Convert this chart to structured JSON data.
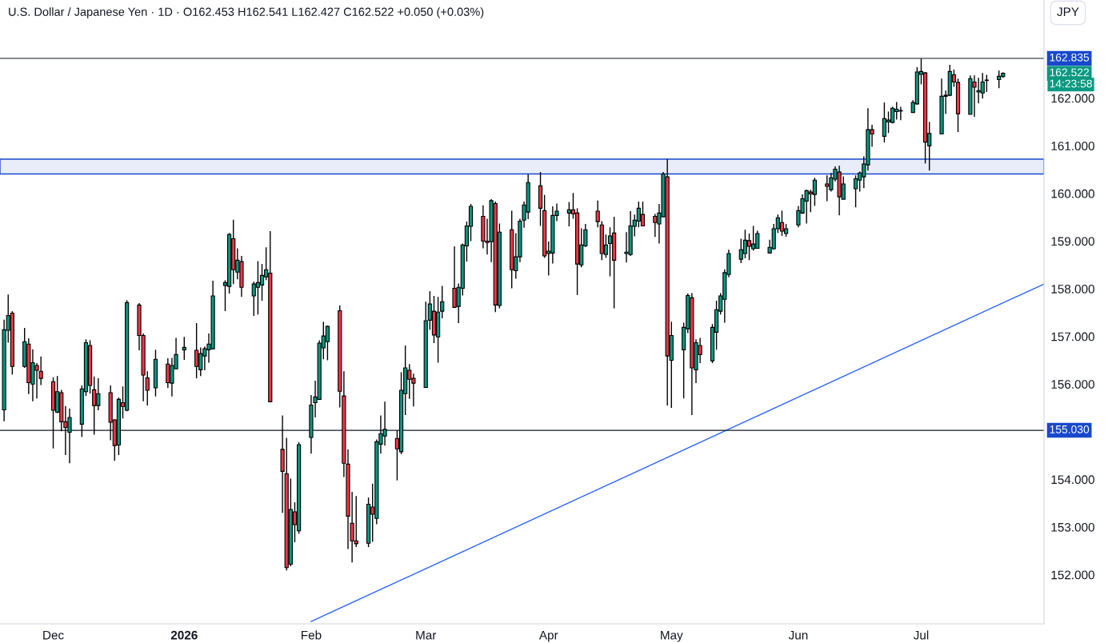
{
  "chart_data": {
    "type": "candlestick",
    "title": "U.S. Dollar / Japanese Yen · 1D · O162.453 H162.541 L162.427 C162.522 +0.050 (+0.03%)",
    "x": [
      "2025-11-19",
      "2025-11-20",
      "2025-11-21",
      "2025-11-24",
      "2025-11-25",
      "2025-11-26",
      "2025-11-27",
      "2025-11-28",
      "2025-12-01",
      "2025-12-02",
      "2025-12-03",
      "2025-12-04",
      "2025-12-05",
      "2025-12-08",
      "2025-12-09",
      "2025-12-10",
      "2025-12-11",
      "2025-12-12",
      "2025-12-15",
      "2025-12-16",
      "2025-12-17",
      "2025-12-18",
      "2025-12-19",
      "2025-12-22",
      "2025-12-23",
      "2025-12-24",
      "2025-12-26",
      "2025-12-29",
      "2025-12-30",
      "2025-12-31",
      "2026-01-02",
      "2026-01-05",
      "2026-01-06",
      "2026-01-07",
      "2026-01-08",
      "2026-01-09",
      "2026-01-12",
      "2026-01-13",
      "2026-01-14",
      "2026-01-15",
      "2026-01-16",
      "2026-01-19",
      "2026-01-20",
      "2026-01-21",
      "2026-01-22",
      "2026-01-23",
      "2026-01-26",
      "2026-01-27",
      "2026-01-28",
      "2026-01-29",
      "2026-01-30",
      "2026-02-02",
      "2026-02-03",
      "2026-02-04",
      "2026-02-05",
      "2026-02-06",
      "2026-02-09",
      "2026-02-10",
      "2026-02-11",
      "2026-02-12",
      "2026-02-13",
      "2026-02-16",
      "2026-02-17",
      "2026-02-18",
      "2026-02-19",
      "2026-02-20",
      "2026-02-23",
      "2026-02-24",
      "2026-02-25",
      "2026-02-26",
      "2026-02-27",
      "2026-03-02",
      "2026-03-03",
      "2026-03-04",
      "2026-03-05",
      "2026-03-06",
      "2026-03-09",
      "2026-03-10",
      "2026-03-11",
      "2026-03-12",
      "2026-03-13",
      "2026-03-16",
      "2026-03-17",
      "2026-03-18",
      "2026-03-19",
      "2026-03-20",
      "2026-03-23",
      "2026-03-24",
      "2026-03-25",
      "2026-03-26",
      "2026-03-27",
      "2026-03-30",
      "2026-03-31",
      "2026-04-01",
      "2026-04-02",
      "2026-04-03",
      "2026-04-06",
      "2026-04-07",
      "2026-04-08",
      "2026-04-09",
      "2026-04-10",
      "2026-04-13",
      "2026-04-14",
      "2026-04-15",
      "2026-04-16",
      "2026-04-17",
      "2026-04-20",
      "2026-04-21",
      "2026-04-22",
      "2026-04-23",
      "2026-04-24",
      "2026-04-27",
      "2026-04-28",
      "2026-04-29",
      "2026-04-30",
      "2026-05-01",
      "2026-05-04",
      "2026-05-05",
      "2026-05-06",
      "2026-05-07",
      "2026-05-08",
      "2026-05-11",
      "2026-05-12",
      "2026-05-13",
      "2026-05-14",
      "2026-05-15",
      "2026-05-18",
      "2026-05-19",
      "2026-05-20",
      "2026-05-21",
      "2026-05-22",
      "2026-05-25",
      "2026-05-26",
      "2026-05-27",
      "2026-05-28",
      "2026-05-29",
      "2026-06-01",
      "2026-06-02",
      "2026-06-03",
      "2026-06-04",
      "2026-06-05",
      "2026-06-08",
      "2026-06-09",
      "2026-06-10",
      "2026-06-11",
      "2026-06-12",
      "2026-06-15",
      "2026-06-16",
      "2026-06-17",
      "2026-06-18",
      "2026-06-19",
      "2026-06-22",
      "2026-06-23",
      "2026-06-24",
      "2026-06-25",
      "2026-06-26",
      "2026-06-29",
      "2026-06-30",
      "2026-07-01",
      "2026-07-02",
      "2026-07-03",
      "2026-07-06",
      "2026-07-07",
      "2026-07-08",
      "2026-07-09",
      "2026-07-10",
      "2026-07-13",
      "2026-07-14",
      "2026-07-15",
      "2026-07-16",
      "2026-07-17",
      "2026-07-20",
      "2026-07-21"
    ],
    "ohlc": [
      [
        155.46,
        157.35,
        155.22,
        157.14
      ],
      [
        157.13,
        157.88,
        156.87,
        157.44
      ],
      [
        157.49,
        157.53,
        156.2,
        156.37
      ],
      [
        156.37,
        157.18,
        156.34,
        156.89
      ],
      [
        156.84,
        156.96,
        155.79,
        156.03
      ],
      [
        156.0,
        156.73,
        155.64,
        156.45
      ],
      [
        156.39,
        156.44,
        155.7,
        156.29
      ],
      [
        156.27,
        156.58,
        155.98,
        156.12
      ],
      [
        156.05,
        156.14,
        154.65,
        155.45
      ],
      [
        155.41,
        156.17,
        155.39,
        155.84
      ],
      [
        155.82,
        155.88,
        155.01,
        155.21
      ],
      [
        155.21,
        155.54,
        154.51,
        155.09
      ],
      [
        154.99,
        155.49,
        154.34,
        155.3
      ],
      [
        155.16,
        155.97,
        154.89,
        155.9
      ],
      [
        155.84,
        156.94,
        155.75,
        156.87
      ],
      [
        156.81,
        156.92,
        155.8,
        155.97
      ],
      [
        155.88,
        156.16,
        154.94,
        155.55
      ],
      [
        155.55,
        156.12,
        155.45,
        155.8
      ],
      [
        155.82,
        155.97,
        154.82,
        155.2
      ],
      [
        155.25,
        155.26,
        154.39,
        154.71
      ],
      [
        154.72,
        155.72,
        154.51,
        155.68
      ],
      [
        155.61,
        155.95,
        155.28,
        155.53
      ],
      [
        155.45,
        157.76,
        155.43,
        157.71
      ],
      [
        157.66,
        157.7,
        156.71,
        157.02
      ],
      [
        157.02,
        157.06,
        155.64,
        156.19
      ],
      [
        156.13,
        156.27,
        155.55,
        155.87
      ],
      [
        155.92,
        156.72,
        155.74,
        156.52
      ],
      [
        156.42,
        156.54,
        155.92,
        156.03
      ],
      [
        156.02,
        156.55,
        155.74,
        156.39
      ],
      [
        156.32,
        156.97,
        156.32,
        156.62
      ],
      [
        156.72,
        156.99,
        156.51,
        156.77
      ],
      [
        156.71,
        157.28,
        156.12,
        156.37
      ],
      [
        156.3,
        156.77,
        156.17,
        156.64
      ],
      [
        156.59,
        156.79,
        156.29,
        156.74
      ],
      [
        156.72,
        157.06,
        156.45,
        156.84
      ],
      [
        156.74,
        158.17,
        156.74,
        157.85
      ],
      [
        158.07,
        158.18,
        157.53,
        158.13
      ],
      [
        158.05,
        159.17,
        157.9,
        159.14
      ],
      [
        159.05,
        159.45,
        158.1,
        158.4
      ],
      [
        158.35,
        158.85,
        158.2,
        158.6
      ],
      [
        158.57,
        158.69,
        157.83,
        158.03
      ],
      [
        157.85,
        158.15,
        157.43,
        158.1
      ],
      [
        158.03,
        158.58,
        157.46,
        158.13
      ],
      [
        158.08,
        158.52,
        157.75,
        158.28
      ],
      [
        158.25,
        158.87,
        158.18,
        158.4
      ],
      [
        158.33,
        159.21,
        155.62,
        155.63
      ],
      [
        154.63,
        155.34,
        153.3,
        154.17
      ],
      [
        154.12,
        154.87,
        152.09,
        152.15
      ],
      [
        152.22,
        154.02,
        152.18,
        153.37
      ],
      [
        153.32,
        153.52,
        152.68,
        153.05
      ],
      [
        152.92,
        154.78,
        152.86,
        154.73
      ],
      [
        154.88,
        155.77,
        154.54,
        155.56
      ],
      [
        155.61,
        156.07,
        155.3,
        155.73
      ],
      [
        155.68,
        156.92,
        155.68,
        156.86
      ],
      [
        156.76,
        157.31,
        156.52,
        157.01
      ],
      [
        156.89,
        157.23,
        156.5,
        157.21
      ],
      [
        157.54,
        157.65,
        155.51,
        155.85
      ],
      [
        155.75,
        156.27,
        154.05,
        154.34
      ],
      [
        154.32,
        154.63,
        152.54,
        153.23
      ],
      [
        153.08,
        153.74,
        152.26,
        152.71
      ],
      [
        152.71,
        153.65,
        152.58,
        152.65
      ],
      [
        152.66,
        153.62,
        152.58,
        153.48
      ],
      [
        153.42,
        153.91,
        152.69,
        153.27
      ],
      [
        153.18,
        154.84,
        153.06,
        154.79
      ],
      [
        154.74,
        155.34,
        154.54,
        154.96
      ],
      [
        154.91,
        155.63,
        154.71,
        155.05
      ],
      [
        154.86,
        155.03,
        153.98,
        154.64
      ],
      [
        154.58,
        156.25,
        154.53,
        155.87
      ],
      [
        155.8,
        156.81,
        155.35,
        156.34
      ],
      [
        156.29,
        156.42,
        155.69,
        156.1
      ],
      [
        156.12,
        156.22,
        155.53,
        156.02
      ],
      [
        155.93,
        157.73,
        155.93,
        157.33
      ],
      [
        157.34,
        157.95,
        157.14,
        157.68
      ],
      [
        157.53,
        157.85,
        156.86,
        157.03
      ],
      [
        156.99,
        157.83,
        156.45,
        157.51
      ],
      [
        157.53,
        158.06,
        157.38,
        157.73
      ],
      [
        158.01,
        158.89,
        157.61,
        157.61
      ],
      [
        157.63,
        158.11,
        157.28,
        158.03
      ],
      [
        158.01,
        158.95,
        157.86,
        158.92
      ],
      [
        158.9,
        159.41,
        158.57,
        159.32
      ],
      [
        159.31,
        159.78,
        159.0,
        159.73
      ],
      [
        159.52,
        159.75,
        158.85,
        159.0
      ],
      [
        159.0,
        159.47,
        158.72,
        158.97
      ],
      [
        158.99,
        159.88,
        158.56,
        159.85
      ],
      [
        159.79,
        159.83,
        157.51,
        157.66
      ],
      [
        157.65,
        159.37,
        157.59,
        159.19
      ],
      [
        159.24,
        159.64,
        158.01,
        158.4
      ],
      [
        158.38,
        159.17,
        158.21,
        158.67
      ],
      [
        158.67,
        159.47,
        158.56,
        159.42
      ],
      [
        159.44,
        159.83,
        159.28,
        159.76
      ],
      [
        159.61,
        160.4,
        159.46,
        160.23
      ],
      [
        160.16,
        160.45,
        159.32,
        159.69
      ],
      [
        159.64,
        159.97,
        158.65,
        158.69
      ],
      [
        158.74,
        158.99,
        158.28,
        158.79
      ],
      [
        158.75,
        159.73,
        158.53,
        159.54
      ],
      [
        159.54,
        159.79,
        159.42,
        159.63
      ],
      [
        159.59,
        159.82,
        159.31,
        159.66
      ],
      [
        159.66,
        160.01,
        159.47,
        159.57
      ],
      [
        159.59,
        159.69,
        157.87,
        158.52
      ],
      [
        158.5,
        159.27,
        158.45,
        158.92
      ],
      [
        158.9,
        159.36,
        158.88,
        159.24
      ],
      [
        159.63,
        159.85,
        159.29,
        159.41
      ],
      [
        159.34,
        159.42,
        158.6,
        158.74
      ],
      [
        158.72,
        159.14,
        158.65,
        158.92
      ],
      [
        158.95,
        159.29,
        158.26,
        159.11
      ],
      [
        159.17,
        159.51,
        157.59,
        158.6
      ],
      [
        158.74,
        159.19,
        158.55,
        158.77
      ],
      [
        158.72,
        159.63,
        158.69,
        159.32
      ],
      [
        159.31,
        159.56,
        159.1,
        159.44
      ],
      [
        159.42,
        159.83,
        159.29,
        159.69
      ],
      [
        159.56,
        159.83,
        159.31,
        159.32
      ],
      [
        159.52,
        159.57,
        159.09,
        159.39
      ],
      [
        159.36,
        159.78,
        158.95,
        159.59
      ],
      [
        159.51,
        160.45,
        159.51,
        160.41
      ],
      [
        160.35,
        160.72,
        155.55,
        156.59
      ],
      [
        156.5,
        157.31,
        155.5,
        157.02
      ],
      [
        156.72,
        157.29,
        155.7,
        157.19
      ],
      [
        157.16,
        157.9,
        157.07,
        157.86
      ],
      [
        157.81,
        157.91,
        155.35,
        156.34
      ],
      [
        156.3,
        156.94,
        156.02,
        156.87
      ],
      [
        156.81,
        156.97,
        156.44,
        156.62
      ],
      [
        156.49,
        157.26,
        156.44,
        157.19
      ],
      [
        157.09,
        157.75,
        156.72,
        157.56
      ],
      [
        157.53,
        157.91,
        157.46,
        157.85
      ],
      [
        157.78,
        158.41,
        157.29,
        158.34
      ],
      [
        158.3,
        158.82,
        158.24,
        158.74
      ],
      [
        158.62,
        159.05,
        158.54,
        158.82
      ],
      [
        158.74,
        159.24,
        158.64,
        159.02
      ],
      [
        159.01,
        159.16,
        158.6,
        158.89
      ],
      [
        158.84,
        159.32,
        158.8,
        158.94
      ],
      [
        158.85,
        159.22,
        158.85,
        159.16
      ],
      [
        158.75,
        159.03,
        158.75,
        158.87
      ],
      [
        158.84,
        159.36,
        158.82,
        159.26
      ],
      [
        159.26,
        159.56,
        159.17,
        159.49
      ],
      [
        159.39,
        159.64,
        159.11,
        159.21
      ],
      [
        159.16,
        159.36,
        159.09,
        159.26
      ],
      [
        159.34,
        159.74,
        159.29,
        159.64
      ],
      [
        159.59,
        159.98,
        159.57,
        159.89
      ],
      [
        159.84,
        160.08,
        159.37,
        160.06
      ],
      [
        160.03,
        160.08,
        159.61,
        159.99
      ],
      [
        159.98,
        160.33,
        159.74,
        160.28
      ],
      [
        160.2,
        160.38,
        159.84,
        160.15
      ],
      [
        160.08,
        160.43,
        160.04,
        160.33
      ],
      [
        160.3,
        160.57,
        160.25,
        160.51
      ],
      [
        160.45,
        160.58,
        159.54,
        159.93
      ],
      [
        159.88,
        160.36,
        159.88,
        160.2
      ],
      [
        160.1,
        160.38,
        159.71,
        160.31
      ],
      [
        160.28,
        160.46,
        160.04,
        160.43
      ],
      [
        160.35,
        160.78,
        160.11,
        160.62
      ],
      [
        160.6,
        161.79,
        160.48,
        161.34
      ],
      [
        161.34,
        161.44,
        160.98,
        161.25
      ],
      [
        161.2,
        161.91,
        161.07,
        161.57
      ],
      [
        161.5,
        161.72,
        161.27,
        161.54
      ],
      [
        161.49,
        161.82,
        161.47,
        161.79
      ],
      [
        161.72,
        161.92,
        161.55,
        161.77
      ],
      [
        161.73,
        161.82,
        161.54,
        161.74
      ],
      [
        161.7,
        161.96,
        161.7,
        161.91
      ],
      [
        161.88,
        162.65,
        161.86,
        162.55
      ],
      [
        162.5,
        162.83,
        162.29,
        162.56
      ],
      [
        162.53,
        162.55,
        160.63,
        161.08
      ],
      [
        161.0,
        161.5,
        160.48,
        161.26
      ],
      [
        161.25,
        162.41,
        161.25,
        162.04
      ],
      [
        162.04,
        162.16,
        161.67,
        162.06
      ],
      [
        162.06,
        162.7,
        162.04,
        162.56
      ],
      [
        162.49,
        162.6,
        162.24,
        162.34
      ],
      [
        162.33,
        162.41,
        161.29,
        161.67
      ],
      [
        161.66,
        162.48,
        161.66,
        162.41
      ],
      [
        162.34,
        162.48,
        161.61,
        162.23
      ],
      [
        162.13,
        162.43,
        161.89,
        162.16
      ],
      [
        162.11,
        162.53,
        161.99,
        162.34
      ],
      [
        162.37,
        162.49,
        162.13,
        162.38
      ],
      [
        162.39,
        162.58,
        162.21,
        162.46
      ],
      [
        162.453,
        162.541,
        162.427,
        162.522
      ]
    ],
    "series": [
      {
        "type": "line",
        "color": "#2962ff",
        "x": [
          "2026-02-02",
          "2026-07-31"
        ],
        "values": [
          151.02,
          158.1
        ]
      }
    ],
    "xlim": [
      "2025-11-18",
      "2026-07-31"
    ],
    "xticks": [
      {
        "value": "2025-12-01",
        "label": "Dec"
      },
      {
        "value": "2026-01-02",
        "label": "2026"
      },
      {
        "value": "2026-02-02",
        "label": "Feb"
      },
      {
        "value": "2026-03-02",
        "label": "Mar"
      },
      {
        "value": "2026-04-01",
        "label": "Apr"
      },
      {
        "value": "2026-05-01",
        "label": "May"
      },
      {
        "value": "2026-06-01",
        "label": "Jun"
      },
      {
        "value": "2026-07-01",
        "label": "Jul"
      }
    ],
    "ylim": [
      150.97,
      164.06
    ],
    "yticks": [
      {
        "value": 152,
        "label": "152.000"
      },
      {
        "value": 153,
        "label": "153.000"
      },
      {
        "value": 154,
        "label": "154.000"
      },
      {
        "value": 156,
        "label": "156.000"
      },
      {
        "value": 157,
        "label": "157.000"
      },
      {
        "value": 158,
        "label": "158.000"
      },
      {
        "value": 159,
        "label": "159.000"
      },
      {
        "value": 160,
        "label": "160.000"
      },
      {
        "value": 161,
        "label": "161.000"
      },
      {
        "value": 162,
        "label": "162.000"
      }
    ],
    "ref_lines": [
      {
        "axis": "y",
        "value": 162.835,
        "label": "162.835",
        "color": "#131722"
      },
      {
        "axis": "y",
        "value": 155.03,
        "label": "155.030",
        "color": "#131722"
      }
    ],
    "bands": [
      {
        "axis": "y",
        "from": 160.41,
        "to": 160.72,
        "color": "#e8edf9"
      }
    ],
    "annotations": [
      "162.522",
      "14:23:58",
      "JPY"
    ],
    "grid": false,
    "legend": false
  }
}
